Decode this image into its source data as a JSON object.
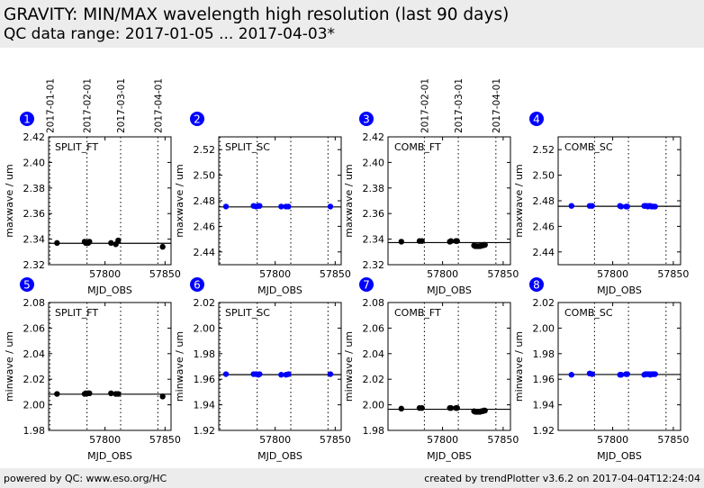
{
  "header": {
    "title": "GRAVITY: MIN/MAX wavelength high resolution (last 90 days)",
    "subtitle": "QC data range: 2017-01-05 ... 2017-04-03*"
  },
  "footer": {
    "left": "powered by QC: www.eso.org/HC",
    "right": "created by trendPlotter v3.6.2 on 2017-04-04T12:24:04"
  },
  "colors": {
    "badge": "#0000ff",
    "ft_points": "#000000",
    "sc_points": "#0000ff",
    "median_line": "#000000"
  },
  "date_ticks": [
    {
      "label": "2017-01-01",
      "mjd": 57754
    },
    {
      "label": "2017-02-01",
      "mjd": 57785
    },
    {
      "label": "2017-03-01",
      "mjd": 57813
    },
    {
      "label": "2017-04-01",
      "mjd": 57844
    }
  ],
  "chart_data": [
    {
      "type": "scatter",
      "panel": "1",
      "label": "SPLIT_FT",
      "xlabel": "MJD_OBS",
      "ylabel": "maxwave / um",
      "show_dates": true,
      "color": "#000000",
      "xlim": [
        57753,
        57855
      ],
      "xticks": [
        57800,
        57850
      ],
      "ylim": [
        2.32,
        2.42
      ],
      "yticks": [
        "2.32",
        "2.34",
        "2.36",
        "2.38",
        "2.40",
        "2.42"
      ],
      "median": 2.3367,
      "x": [
        57760,
        57783,
        57784,
        57786,
        57787,
        57805,
        57809,
        57811,
        57848
      ],
      "y": [
        2.337,
        2.338,
        2.337,
        2.337,
        2.338,
        2.337,
        2.336,
        2.339,
        2.334
      ]
    },
    {
      "type": "scatter",
      "panel": "2",
      "label": "SPLIT_SC",
      "xlabel": "MJD_OBS",
      "ylabel": "maxwave / um",
      "show_dates": false,
      "color": "#0000ff",
      "xlim": [
        57753,
        57855
      ],
      "xticks": [
        57800,
        57850
      ],
      "ylim": [
        2.43,
        2.53
      ],
      "yticks": [
        "2.44",
        "2.46",
        "2.48",
        "2.50",
        "2.52"
      ],
      "median": 2.4752,
      "x": [
        57759,
        57782,
        57784,
        57786,
        57787,
        57805,
        57809,
        57811,
        57846
      ],
      "y": [
        2.4755,
        2.476,
        2.4755,
        2.476,
        2.476,
        2.4755,
        2.4755,
        2.4755,
        2.4755
      ]
    },
    {
      "type": "scatter",
      "panel": "3",
      "label": "COMB_FT",
      "xlabel": "MJD_OBS",
      "ylabel": "maxwave / um",
      "show_dates": true,
      "color": "#000000",
      "xlim": [
        57755,
        57856
      ],
      "xticks": [
        57800,
        57850
      ],
      "ylim": [
        2.32,
        2.42
      ],
      "yticks": [
        "2.32",
        "2.34",
        "2.36",
        "2.38",
        "2.40",
        "2.42"
      ],
      "median": 2.3373,
      "x": [
        57766,
        57781,
        57783,
        57806,
        57807,
        57811,
        57812,
        57826,
        57827,
        57828,
        57829,
        57830,
        57831,
        57832,
        57833,
        57834,
        57835
      ],
      "y": [
        2.338,
        2.3385,
        2.3385,
        2.338,
        2.3385,
        2.3385,
        2.3385,
        2.335,
        2.3345,
        2.3345,
        2.3345,
        2.3345,
        2.3345,
        2.335,
        2.335,
        2.3355,
        2.3355
      ]
    },
    {
      "type": "scatter",
      "panel": "4",
      "label": "COMB_SC",
      "xlabel": "MJD_OBS",
      "ylabel": "maxwave / um",
      "show_dates": false,
      "color": "#0000ff",
      "xlim": [
        57755,
        57856
      ],
      "xticks": [
        57800,
        57850
      ],
      "ylim": [
        2.43,
        2.53
      ],
      "yticks": [
        "2.44",
        "2.46",
        "2.48",
        "2.50",
        "2.52"
      ],
      "median": 2.4757,
      "x": [
        57766,
        57781,
        57783,
        57806,
        57807,
        57811,
        57812,
        57826,
        57827,
        57828,
        57829,
        57830,
        57831,
        57832,
        57833,
        57834,
        57835
      ],
      "y": [
        2.476,
        2.476,
        2.476,
        2.476,
        2.4755,
        2.4755,
        2.4755,
        2.476,
        2.476,
        2.476,
        2.4755,
        2.476,
        2.476,
        2.4755,
        2.4755,
        2.4755,
        2.4755
      ]
    },
    {
      "type": "scatter",
      "panel": "5",
      "label": "SPLIT_FT",
      "xlabel": "MJD_OBS",
      "ylabel": "minwave / um",
      "show_dates": false,
      "color": "#000000",
      "xlim": [
        57753,
        57855
      ],
      "xticks": [
        57800,
        57850
      ],
      "ylim": [
        1.98,
        2.08
      ],
      "yticks": [
        "1.98",
        "2.00",
        "2.02",
        "2.04",
        "2.06",
        "2.08"
      ],
      "median": 2.0083,
      "x": [
        57760,
        57783,
        57784,
        57786,
        57787,
        57805,
        57809,
        57811,
        57848
      ],
      "y": [
        2.0085,
        2.0085,
        2.009,
        2.009,
        2.009,
        2.009,
        2.0085,
        2.0085,
        2.0065
      ]
    },
    {
      "type": "scatter",
      "panel": "6",
      "label": "SPLIT_SC",
      "xlabel": "MJD_OBS",
      "ylabel": "minwave / um",
      "show_dates": false,
      "color": "#0000ff",
      "xlim": [
        57753,
        57855
      ],
      "xticks": [
        57800,
        57850
      ],
      "ylim": [
        1.92,
        2.02
      ],
      "yticks": [
        "1.92",
        "1.94",
        "1.96",
        "1.98",
        "2.00",
        "2.02"
      ],
      "median": 1.9636,
      "x": [
        57759,
        57782,
        57784,
        57786,
        57787,
        57805,
        57809,
        57811,
        57846
      ],
      "y": [
        1.964,
        1.964,
        1.964,
        1.9635,
        1.964,
        1.9635,
        1.9635,
        1.964,
        1.964
      ]
    },
    {
      "type": "scatter",
      "panel": "7",
      "label": "COMB_FT",
      "xlabel": "MJD_OBS",
      "ylabel": "minwave / um",
      "show_dates": false,
      "color": "#000000",
      "xlim": [
        57755,
        57856
      ],
      "xticks": [
        57800,
        57850
      ],
      "ylim": [
        1.98,
        2.08
      ],
      "yticks": [
        "1.98",
        "2.00",
        "2.02",
        "2.04",
        "2.06",
        "2.08"
      ],
      "median": 1.9965,
      "x": [
        57766,
        57781,
        57783,
        57806,
        57807,
        57811,
        57812,
        57826,
        57827,
        57828,
        57829,
        57830,
        57831,
        57832,
        57833,
        57834,
        57835
      ],
      "y": [
        1.997,
        1.9975,
        1.9975,
        1.9975,
        1.9975,
        1.9975,
        1.9975,
        1.995,
        1.9945,
        1.9945,
        1.9945,
        1.9945,
        1.9945,
        1.995,
        1.995,
        1.9955,
        1.9955
      ]
    },
    {
      "type": "scatter",
      "panel": "8",
      "label": "COMB_SC",
      "xlabel": "MJD_OBS",
      "ylabel": "minwave / um",
      "show_dates": false,
      "color": "#0000ff",
      "xlim": [
        57755,
        57856
      ],
      "xticks": [
        57800,
        57850
      ],
      "ylim": [
        1.92,
        2.02
      ],
      "yticks": [
        "1.92",
        "1.94",
        "1.96",
        "1.98",
        "2.00",
        "2.02"
      ],
      "median": 1.9637,
      "x": [
        57766,
        57781,
        57783,
        57806,
        57807,
        57811,
        57812,
        57826,
        57827,
        57828,
        57829,
        57830,
        57831,
        57832,
        57833,
        57834,
        57835
      ],
      "y": [
        1.9635,
        1.9645,
        1.964,
        1.9635,
        1.9635,
        1.964,
        1.964,
        1.9635,
        1.964,
        1.964,
        1.964,
        1.964,
        1.9635,
        1.964,
        1.964,
        1.964,
        1.964
      ]
    }
  ]
}
